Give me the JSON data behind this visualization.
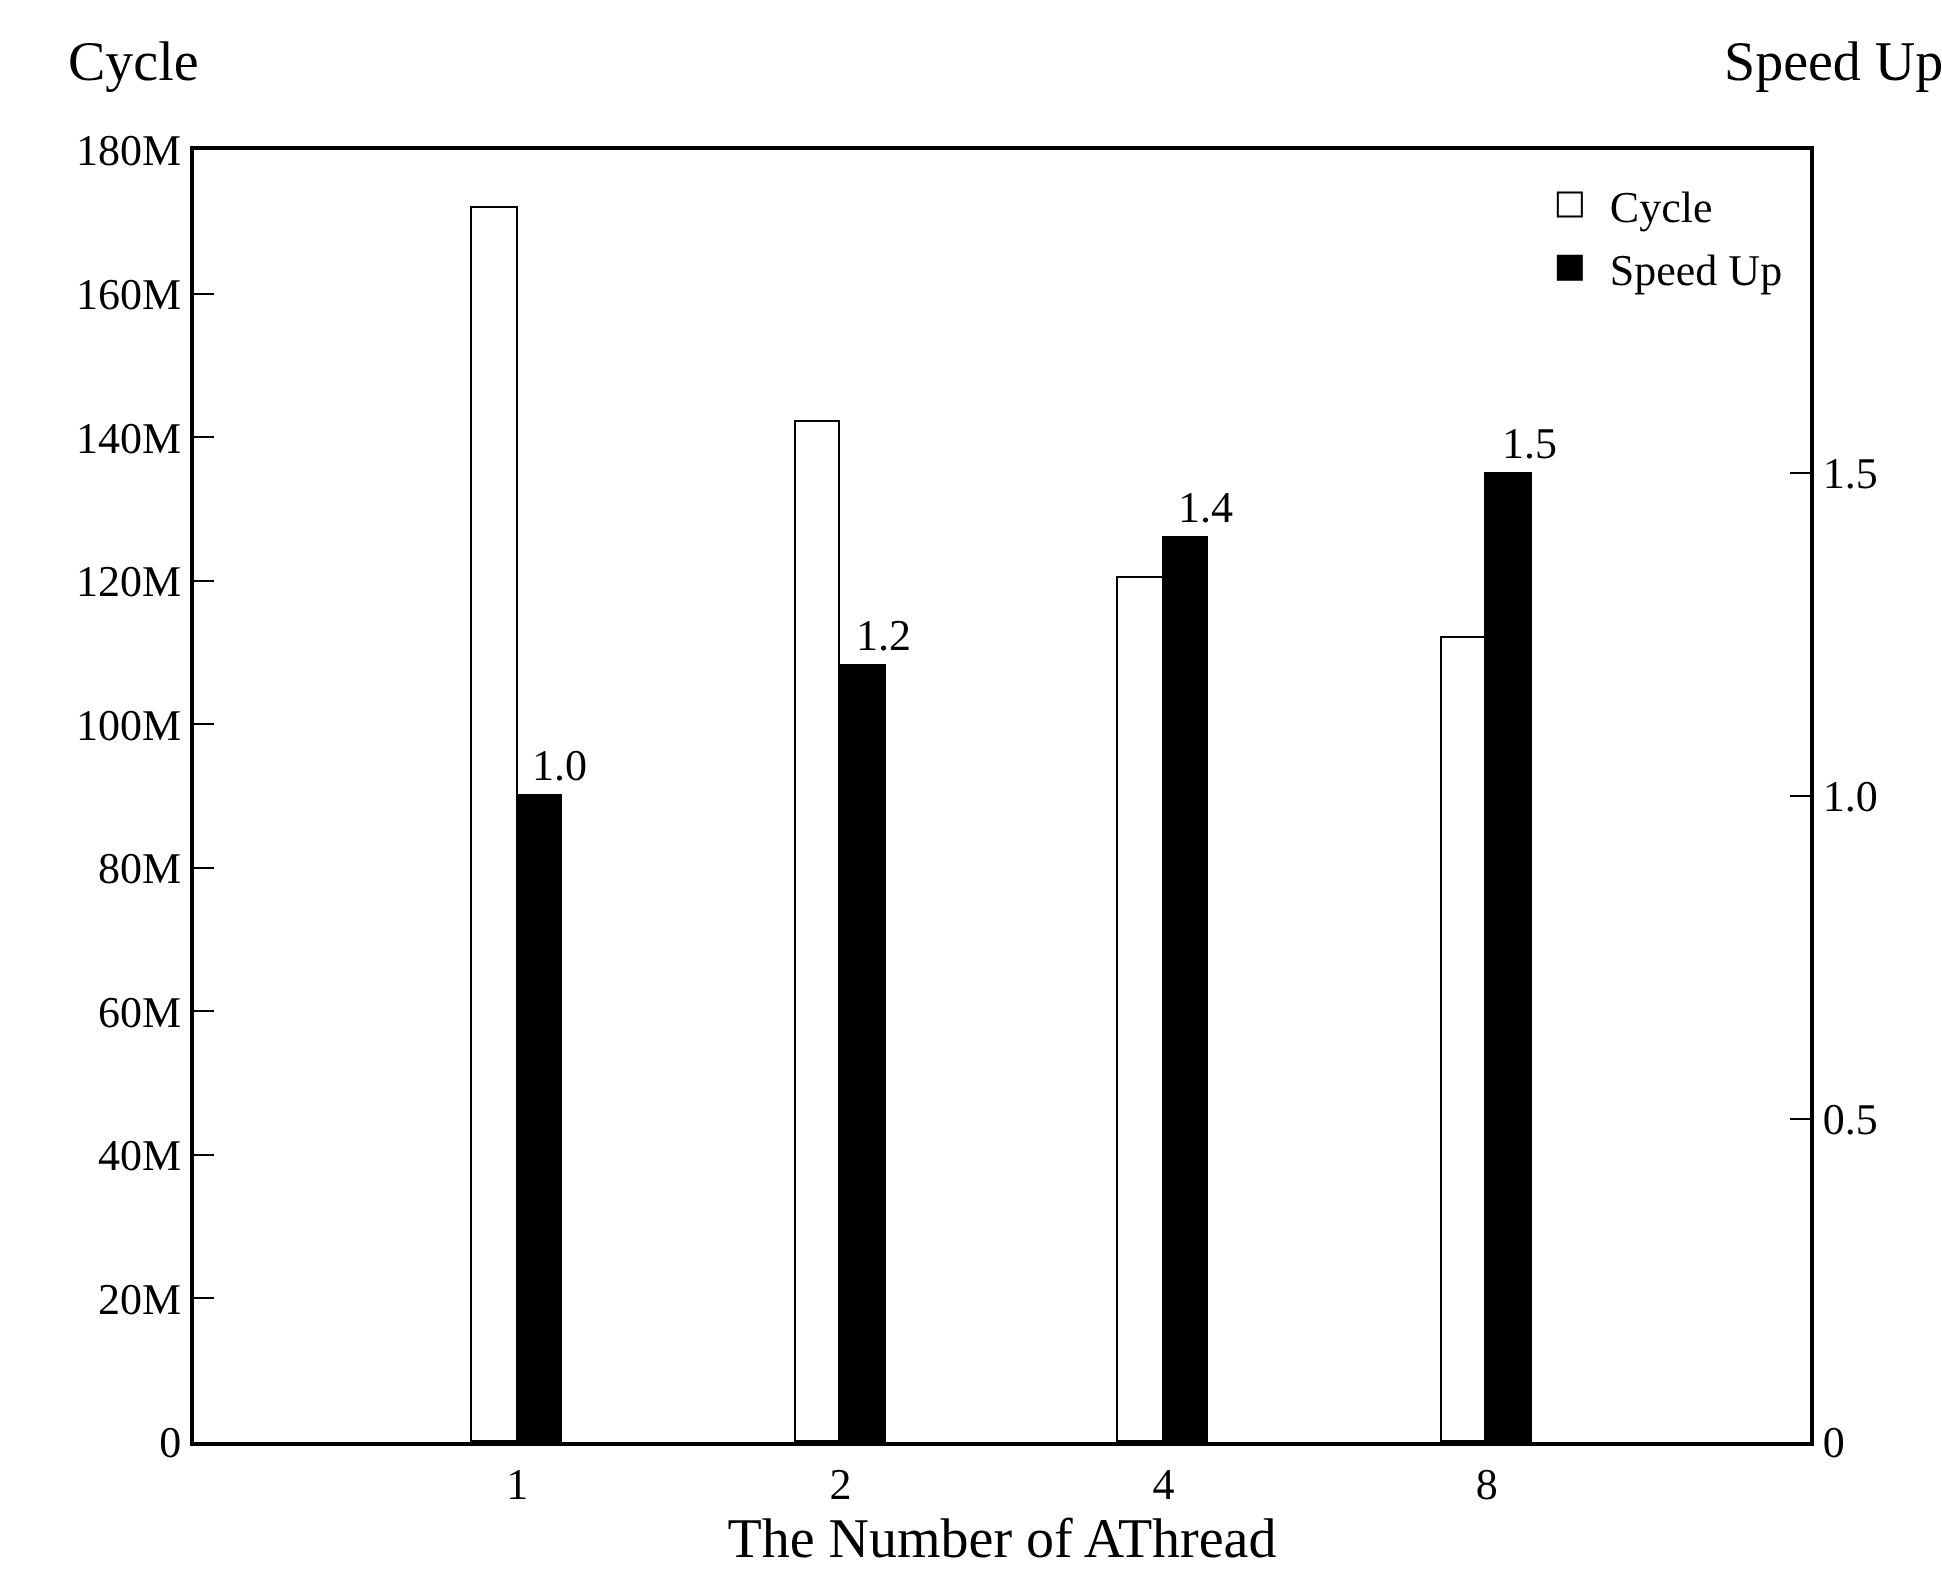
{
  "chart_data": {
    "type": "bar",
    "xlabel": "The Number of AThread",
    "ylabel": "Cycle",
    "y2label": "Speed Up",
    "categories": [
      "1",
      "2",
      "4",
      "8"
    ],
    "series": [
      {
        "name": "Cycle",
        "color": "#ffffff",
        "values": [
          172000000,
          142000000,
          120500000,
          112000000
        ]
      },
      {
        "name": "Speed Up",
        "color": "#000000",
        "values": [
          1.0,
          1.2,
          1.4,
          1.5
        ],
        "axis": "y2",
        "value_labels": [
          "1.0",
          "1.2",
          "1.4",
          "1.5"
        ]
      }
    ],
    "ylim": [
      0,
      180000000
    ],
    "yticks": [
      0,
      {
        "value": 20000000,
        "label": "20M"
      },
      {
        "value": 40000000,
        "label": "40M"
      },
      {
        "value": 60000000,
        "label": "60M"
      },
      {
        "value": 80000000,
        "label": "80M"
      },
      {
        "value": 100000000,
        "label": "100M"
      },
      {
        "value": 120000000,
        "label": "120M"
      },
      {
        "value": 140000000,
        "label": "140M"
      },
      {
        "value": 160000000,
        "label": "160M"
      },
      {
        "value": 180000000,
        "label": "180M"
      }
    ],
    "y2lim": [
      0,
      2.0
    ],
    "y2ticks": [
      0,
      0.5,
      {
        "value": 1.0,
        "label": "1.0"
      },
      1.5
    ],
    "legend": "top right"
  }
}
